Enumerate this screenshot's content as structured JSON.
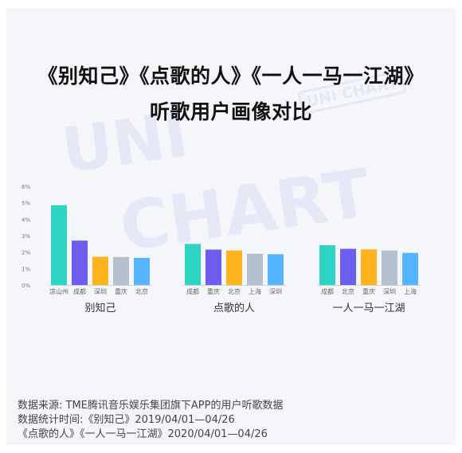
{
  "title_line1": "《别知己》《点歌的人》《一人一马一江湖》",
  "title_line2": "听歌用户画像对比",
  "watermark": {
    "big1": "UNI",
    "big2": "CHART",
    "small": "UNI CHART"
  },
  "footer": {
    "source": "数据来源: TME腾讯音乐娱乐集团旗下APP的用户听歌数据",
    "time_line1": "数据统计时间:《别知己》2019/04/01—04/26",
    "time_line2": "《点歌的人》《一人一马一江湖》2020/04/01—04/26"
  },
  "chart_data": {
    "type": "bar",
    "yticks": [
      "0%",
      "1%",
      "2%",
      "3%",
      "4%",
      "5%",
      "6%"
    ],
    "ylim": [
      0,
      6
    ],
    "grid": false,
    "groups": [
      {
        "name": "别知己",
        "categories": [
          "凉山州",
          "成都",
          "深圳",
          "重庆",
          "北京"
        ],
        "values": [
          4.85,
          2.7,
          1.72,
          1.7,
          1.65
        ],
        "colors": [
          "#2dd4c4",
          "#6e5ef0",
          "#ffb41f",
          "#b4c0cf",
          "#55b4ff"
        ]
      },
      {
        "name": "点歌的人",
        "categories": [
          "成都",
          "重庆",
          "北京",
          "上海",
          "深圳"
        ],
        "values": [
          2.5,
          2.15,
          2.1,
          1.9,
          1.87
        ],
        "colors": [
          "#2dd4c4",
          "#6e5ef0",
          "#ffb41f",
          "#b4c0cf",
          "#55b4ff"
        ]
      },
      {
        "name": "一人一马一江湖",
        "categories": [
          "成都",
          "北京",
          "重庆",
          "深圳",
          "上海"
        ],
        "values": [
          2.42,
          2.2,
          2.17,
          2.1,
          1.95
        ],
        "colors": [
          "#2dd4c4",
          "#6e5ef0",
          "#ffb41f",
          "#b4c0cf",
          "#55b4ff"
        ]
      }
    ]
  }
}
